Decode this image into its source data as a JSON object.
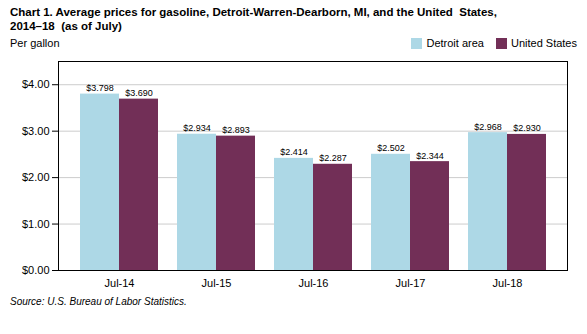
{
  "chart_data": {
    "type": "bar",
    "title": "Chart 1. Average prices for gasoline, Detroit-Warren-Dearborn, MI, and the United  States,\n2014–18  (as of July)",
    "ylabel": "Per gallon",
    "caption": "Source: U.S. Bureau of Labor Statistics.",
    "categories": [
      "Jul-14",
      "Jul-15",
      "Jul-16",
      "Jul-17",
      "Jul-18"
    ],
    "series": [
      {
        "name": "Detroit area",
        "color": "#ADD8E6",
        "values": [
          3.798,
          2.934,
          2.414,
          2.502,
          2.968
        ],
        "value_labels": [
          "$3.798",
          "$2.934",
          "$2.414",
          "$2.502",
          "$2.968"
        ]
      },
      {
        "name": "United States",
        "color": "#722F57",
        "values": [
          3.69,
          2.893,
          2.287,
          2.344,
          2.93
        ],
        "value_labels": [
          "$3.690",
          "$2.893",
          "$2.287",
          "$2.344",
          "$2.930"
        ]
      }
    ],
    "ylim": [
      0,
      4.5
    ],
    "yticks": [
      {
        "value": 0.0,
        "label": "$0.00"
      },
      {
        "value": 1.0,
        "label": "$1.00"
      },
      {
        "value": 2.0,
        "label": "$2.00"
      },
      {
        "value": 3.0,
        "label": "$3.00"
      },
      {
        "value": 4.0,
        "label": "$4.00"
      }
    ],
    "grid": true,
    "data_labels": true,
    "legend": "upper right"
  }
}
